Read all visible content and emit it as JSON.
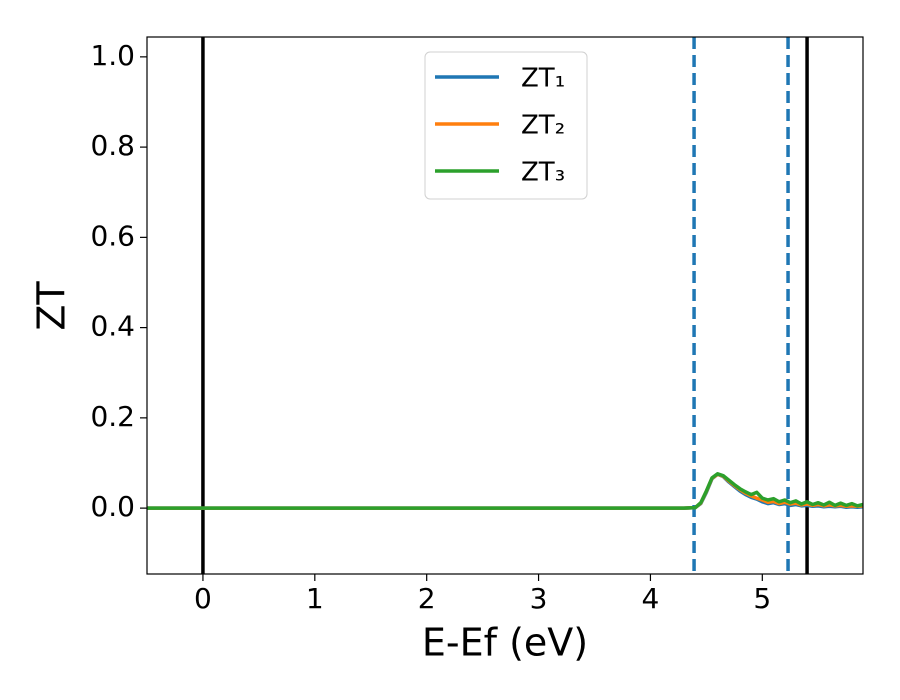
{
  "chart_data": {
    "type": "line",
    "xlabel": "E-Ef (eV)",
    "ylabel": "ZT",
    "x": [
      -0.5,
      4.3,
      4.4,
      4.45,
      4.5,
      4.55,
      4.6,
      4.65,
      4.7,
      4.75,
      4.8,
      4.85,
      4.9,
      4.95,
      5.0,
      5.05,
      5.1,
      5.15,
      5.2,
      5.25,
      5.3,
      5.35,
      5.4,
      5.45,
      5.5,
      5.55,
      5.6,
      5.65,
      5.7,
      5.75,
      5.8,
      5.85,
      5.9
    ],
    "series": [
      {
        "name": "ZT₁",
        "color": "#1f77b4",
        "values": [
          0,
          0,
          0.001,
          0.01,
          0.035,
          0.065,
          0.075,
          0.07,
          0.058,
          0.048,
          0.038,
          0.03,
          0.024,
          0.02,
          0.014,
          0.01,
          0.012,
          0.008,
          0.01,
          0.006,
          0.008,
          0.005,
          0.006,
          0.004,
          0.005,
          0.003,
          0.004,
          0.003,
          0.004,
          0.002,
          0.003,
          0.002,
          0.003
        ]
      },
      {
        "name": "ZT₂",
        "color": "#ff7f0e",
        "values": [
          0,
          0,
          0.001,
          0.011,
          0.037,
          0.066,
          0.075,
          0.071,
          0.06,
          0.05,
          0.041,
          0.033,
          0.027,
          0.022,
          0.018,
          0.013,
          0.015,
          0.01,
          0.013,
          0.009,
          0.011,
          0.007,
          0.009,
          0.006,
          0.008,
          0.005,
          0.007,
          0.005,
          0.006,
          0.004,
          0.005,
          0.004,
          0.005
        ]
      },
      {
        "name": "ZT₃",
        "color": "#2ca02c",
        "values": [
          0,
          0,
          0.001,
          0.012,
          0.038,
          0.067,
          0.076,
          0.072,
          0.062,
          0.052,
          0.043,
          0.036,
          0.03,
          0.035,
          0.022,
          0.018,
          0.021,
          0.014,
          0.018,
          0.012,
          0.016,
          0.009,
          0.014,
          0.008,
          0.012,
          0.007,
          0.013,
          0.006,
          0.011,
          0.006,
          0.01,
          0.005,
          0.008
        ]
      }
    ],
    "vlines": [
      {
        "x": 0,
        "color": "#000000",
        "style": "solid"
      },
      {
        "x": 5.4,
        "color": "#000000",
        "style": "solid"
      },
      {
        "x": 4.39,
        "color": "#1f77b4",
        "style": "dashed"
      },
      {
        "x": 5.23,
        "color": "#1f77b4",
        "style": "dashed"
      }
    ],
    "xlim": [
      -0.5,
      5.9
    ],
    "xticks": [
      0,
      1,
      2,
      3,
      4,
      5
    ],
    "ylim": [
      -0.146,
      1.044
    ],
    "yticks": [
      {
        "value": 0,
        "label": "0.0"
      },
      0.2,
      0.4,
      0.6,
      0.8,
      {
        "value": 1,
        "label": "1.0"
      }
    ],
    "legend": "upper center",
    "grid": false
  }
}
